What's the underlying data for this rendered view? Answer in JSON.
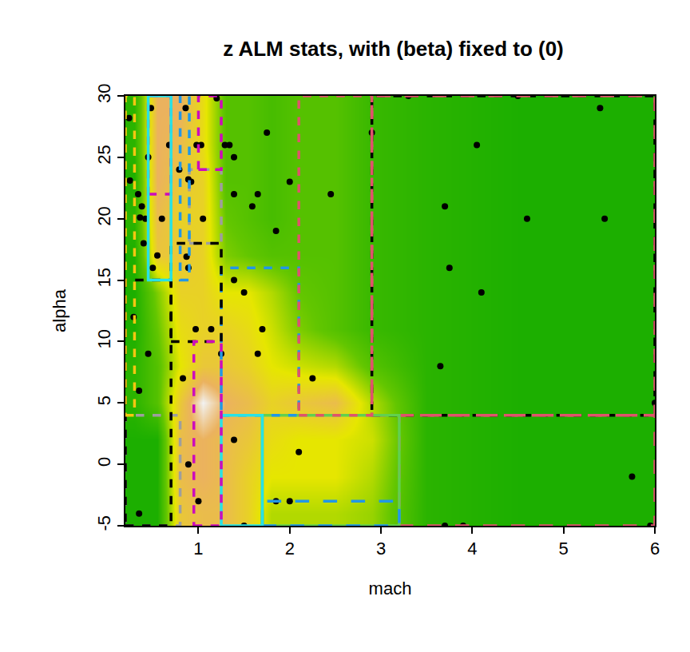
{
  "chart_data": {
    "type": "heatmap",
    "title": "z ALM stats, with (beta) fixed to (0)",
    "x_label": "mach",
    "y_label": "alpha",
    "xlim": [
      0.2,
      6
    ],
    "ylim": [
      -5,
      30
    ],
    "xticks": [
      1,
      2,
      3,
      4,
      5,
      6
    ],
    "yticks": [
      -5,
      0,
      5,
      10,
      15,
      20,
      25,
      30
    ],
    "grid": false,
    "heatmap": {
      "x": [
        0.3,
        0.55,
        0.8,
        1.05,
        1.3,
        1.55,
        1.8,
        2.1,
        2.5,
        2.9,
        3.5,
        4.5,
        5.5
      ],
      "y": [
        -4,
        -1,
        2,
        5,
        8,
        11,
        14,
        17,
        20,
        23,
        26,
        29
      ],
      "z": [
        [
          0.1,
          0.1,
          0.75,
          0.8,
          0.8,
          0.7,
          0.5,
          0.5,
          0.5,
          0.45,
          0.15,
          0.1,
          0.1
        ],
        [
          0.1,
          0.1,
          0.8,
          0.85,
          0.8,
          0.7,
          0.6,
          0.6,
          0.6,
          0.5,
          0.15,
          0.1,
          0.1
        ],
        [
          0.1,
          0.1,
          0.8,
          0.85,
          0.8,
          0.75,
          0.65,
          0.6,
          0.6,
          0.55,
          0.15,
          0.1,
          0.1
        ],
        [
          0.15,
          0.3,
          0.75,
          1.0,
          0.85,
          0.8,
          0.7,
          0.75,
          0.8,
          0.5,
          0.15,
          0.1,
          0.1
        ],
        [
          0.15,
          0.3,
          0.6,
          0.75,
          0.75,
          0.7,
          0.6,
          0.55,
          0.5,
          0.3,
          0.15,
          0.1,
          0.1
        ],
        [
          0.1,
          0.35,
          0.65,
          0.7,
          0.7,
          0.65,
          0.55,
          0.4,
          0.3,
          0.2,
          0.15,
          0.1,
          0.1
        ],
        [
          0.1,
          0.4,
          0.7,
          0.7,
          0.6,
          0.6,
          0.5,
          0.35,
          0.3,
          0.2,
          0.15,
          0.1,
          0.1
        ],
        [
          0.1,
          0.75,
          0.75,
          0.7,
          0.4,
          0.35,
          0.3,
          0.3,
          0.3,
          0.2,
          0.15,
          0.1,
          0.1
        ],
        [
          0.15,
          0.8,
          0.7,
          0.7,
          0.35,
          0.3,
          0.25,
          0.3,
          0.3,
          0.2,
          0.15,
          0.1,
          0.1
        ],
        [
          0.1,
          0.85,
          0.75,
          0.7,
          0.3,
          0.3,
          0.25,
          0.3,
          0.3,
          0.2,
          0.15,
          0.1,
          0.1
        ],
        [
          0.15,
          0.85,
          0.8,
          0.65,
          0.3,
          0.3,
          0.25,
          0.3,
          0.3,
          0.2,
          0.15,
          0.1,
          0.1
        ],
        [
          0.15,
          0.85,
          0.85,
          0.65,
          0.3,
          0.3,
          0.25,
          0.3,
          0.3,
          0.2,
          0.15,
          0.1,
          0.1
        ]
      ],
      "zlim": [
        0,
        1
      ]
    },
    "points": {
      "color": "#000000",
      "marker": "circle",
      "x": [
        0.24,
        0.25,
        0.34,
        0.36,
        0.38,
        0.29,
        0.35,
        0.35,
        0.4,
        0.42,
        0.45,
        0.45,
        0.48,
        0.5,
        0.55,
        0.6,
        0.68,
        0.79,
        0.86,
        0.87,
        0.83,
        0.89,
        0.89,
        0.89,
        0.92,
        0.97,
        1.0,
        0.98,
        1.03,
        1.05,
        1.14,
        1.2,
        1.25,
        1.29,
        1.34,
        1.39,
        1.39,
        1.39,
        1.39,
        1.5,
        1.5,
        1.59,
        1.65,
        1.65,
        1.7,
        1.75,
        1.85,
        1.85,
        2.0,
        2.0,
        2.1,
        2.25,
        2.45,
        2.9,
        3.3,
        3.7,
        3.75,
        3.65,
        3.7,
        3.9,
        4.05,
        4.1,
        4.5,
        4.6,
        5.4,
        5.45,
        5.75,
        6.0,
        5.95
      ],
      "y": [
        28.2,
        23.1,
        22,
        20.1,
        21,
        12,
        6,
        -4,
        18,
        20,
        9,
        25,
        29,
        16,
        17,
        20,
        26,
        24,
        29,
        16.9,
        7,
        0,
        23.2,
        16,
        23,
        11,
        -3,
        26,
        26,
        20,
        11,
        29.8,
        9,
        26,
        26,
        25,
        22,
        15,
        2,
        14,
        -5,
        21,
        22,
        9,
        11,
        27,
        19,
        -3,
        -3,
        23,
        1,
        7,
        22,
        27,
        30,
        21,
        16,
        8,
        -5,
        -5,
        26,
        14,
        30,
        20,
        29,
        20,
        -1,
        5,
        -5
      ]
    },
    "partitions": [
      {
        "x0": 2.9,
        "x1": 6,
        "y0": 4,
        "y1": 30,
        "color": "#000000",
        "line_style": "dashed"
      },
      {
        "x0": 2.9,
        "x1": 6,
        "y0": 4,
        "y1": 30,
        "color": "#DF536B",
        "line_style": "longdash"
      },
      {
        "x0": 3.2,
        "x1": 6,
        "y0": -5,
        "y1": 4,
        "color": "#DF536B",
        "line_style": "longdash"
      },
      {
        "x0": 1.7,
        "x1": 3.2,
        "y0": -5,
        "y1": 4,
        "color": "#61D04F",
        "line_style": "solid"
      },
      {
        "x0": 1.7,
        "x1": 3.2,
        "y0": -5,
        "y1": -3,
        "color": "#2297E6",
        "line_style": "longdash"
      },
      {
        "x0": 1.25,
        "x1": 2.1,
        "y0": 4,
        "y1": 16,
        "color": "#2297E6",
        "line_style": "dashed"
      },
      {
        "x0": 1.25,
        "x1": 1.7,
        "y0": -5,
        "y1": 4,
        "color": "#28E2E5",
        "line_style": "solid"
      },
      {
        "x0": 2.1,
        "x1": 2.9,
        "y0": 4,
        "y1": 30,
        "color": "#DF536B",
        "line_style": "dashed"
      },
      {
        "x0": 0.2,
        "x1": 0.8,
        "y0": -5,
        "y1": 4,
        "color": "#9E9E9E",
        "line_style": "dashed"
      },
      {
        "x0": 0.9,
        "x1": 1.25,
        "y0": 18,
        "y1": 24,
        "color": "#9E9E9E",
        "line_style": "dashed"
      },
      {
        "x0": 0.2,
        "x1": 0.7,
        "y0": -5,
        "y1": 15,
        "color": "#000000",
        "line_style": "dashed"
      },
      {
        "x0": 0.7,
        "x1": 1.25,
        "y0": 10,
        "y1": 18,
        "color": "#000000",
        "line_style": "dashed"
      },
      {
        "x0": 0.45,
        "x1": 0.7,
        "y0": 22,
        "y1": 30,
        "color": "#CD0BBC",
        "line_style": "dashed"
      },
      {
        "x0": 0.95,
        "x1": 1.25,
        "y0": -5,
        "y1": 10,
        "color": "#CD0BBC",
        "line_style": "dashed"
      },
      {
        "x0": 0.45,
        "x1": 0.7,
        "y0": 15,
        "y1": 30,
        "color": "#28E2E5",
        "line_style": "solid"
      },
      {
        "x0": 0.8,
        "x1": 0.9,
        "y0": 15,
        "y1": 30,
        "color": "#2297E6",
        "line_style": "dashed"
      },
      {
        "x0": 0.2,
        "x1": 0.3,
        "y0": 4,
        "y1": 30,
        "color": "#F5C710",
        "line_style": "dashed"
      },
      {
        "x0": 1.0,
        "x1": 1.25,
        "y0": 24,
        "y1": 30,
        "color": "#CD0BBC",
        "line_style": "dashed"
      }
    ]
  }
}
